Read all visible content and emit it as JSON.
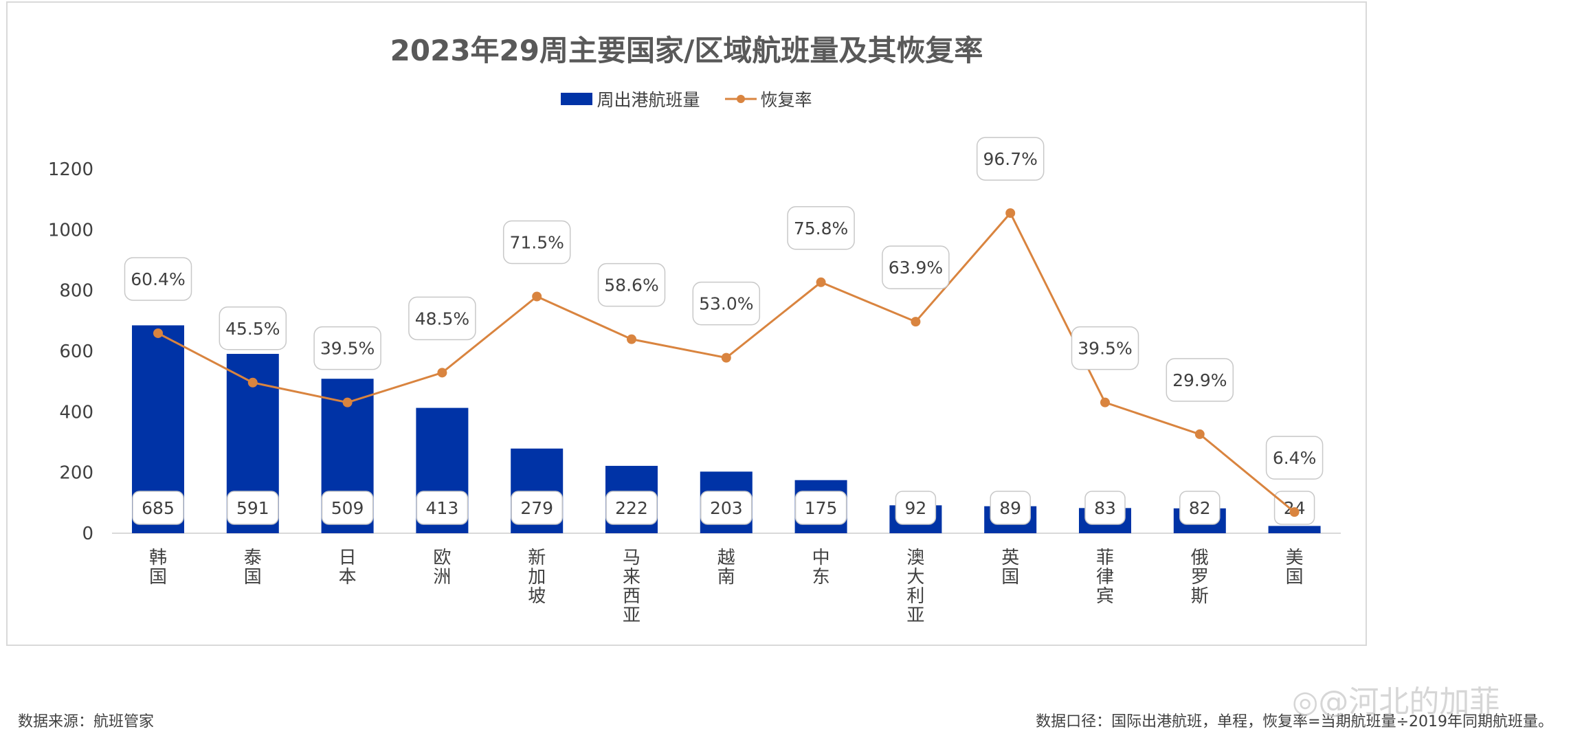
{
  "chart_data": {
    "type": "bar+line",
    "title": "2023年29周主要国家/区域航班量及其恢复率",
    "categories": [
      "韩国",
      "泰国",
      "日本",
      "欧洲",
      "新加坡",
      "马来西亚",
      "越南",
      "中东",
      "澳大利亚",
      "英国",
      "菲律宾",
      "俄罗斯",
      "美国"
    ],
    "series": [
      {
        "name": "周出港航班量",
        "type": "bar",
        "axis": "primary",
        "values": [
          685,
          591,
          509,
          413,
          279,
          222,
          203,
          175,
          92,
          89,
          83,
          82,
          24
        ],
        "color": "#0033A6"
      },
      {
        "name": "恢复率",
        "type": "line",
        "axis": "secondary",
        "values": [
          60.4,
          45.5,
          39.5,
          48.5,
          71.5,
          58.6,
          53.0,
          75.8,
          63.9,
          96.7,
          39.5,
          29.9,
          6.4
        ],
        "labels": [
          "60.4%",
          "45.5%",
          "39.5%",
          "48.5%",
          "71.5%",
          "58.6%",
          "53.0%",
          "75.8%",
          "63.9%",
          "96.7%",
          "39.5%",
          "29.9%",
          "6.4%"
        ],
        "color": "#D9843F"
      }
    ],
    "yticks": [
      "0",
      "200",
      "400",
      "600",
      "800",
      "1000",
      "1200"
    ],
    "ylim": [
      0,
      1200
    ],
    "y2lim": [
      0,
      110
    ],
    "grid": false,
    "legend": "top-center"
  },
  "footer": {
    "source": "数据来源：航班管家",
    "note": "数据口径：国际出港航班，单程，恢复率=当期航班量÷2019年同期航班量。",
    "watermark": "@河北的加菲"
  }
}
